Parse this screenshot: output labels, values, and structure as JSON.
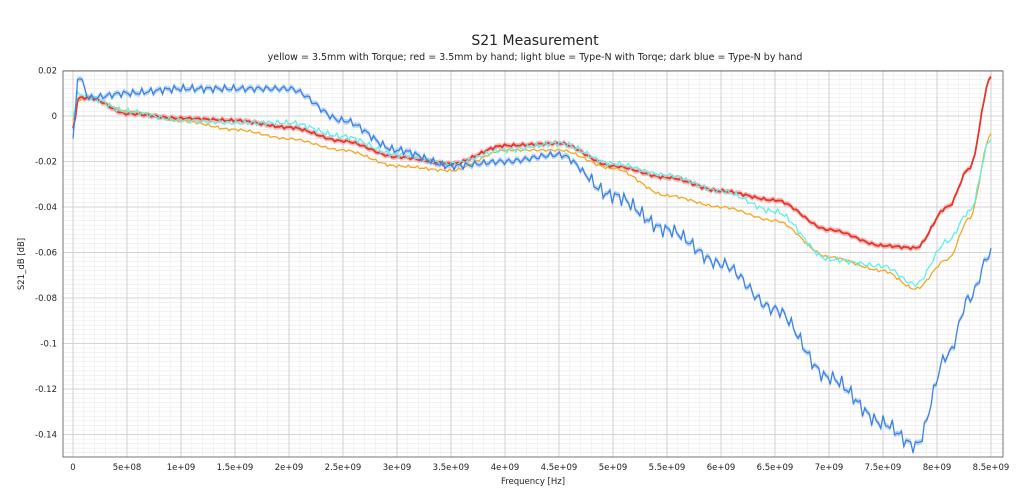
{
  "chart_data": {
    "type": "line",
    "title": "S21 Measurement",
    "subtitle": "yellow = 3.5mm with Torque; red = 3.5mm by hand; light blue = Type-N with Torqe; dark blue = Type-N by hand",
    "xlabel": "Frequency [Hz]",
    "ylabel": "S21_dB [dB]",
    "xlim": [
      0,
      8500000000.0
    ],
    "ylim": [
      -0.15,
      0.02
    ],
    "grid": true,
    "x_ticks": [
      "0",
      "5e+08",
      "1e+09",
      "1.5e+09",
      "2e+09",
      "2.5e+09",
      "3e+09",
      "3.5e+09",
      "4e+09",
      "4.5e+09",
      "5e+09",
      "5.5e+09",
      "6e+09",
      "6.5e+09",
      "7e+09",
      "7.5e+09",
      "8e+09",
      "8.5e+09"
    ],
    "y_ticks": [
      "0.02",
      "0",
      "-0.02",
      "-0.04",
      "-0.06",
      "-0.08",
      "-0.1",
      "-0.12",
      "-0.14"
    ],
    "x": [
      0,
      50000000.0,
      150000000.0,
      500000000.0,
      1000000000.0,
      1500000000.0,
      2000000000.0,
      2500000000.0,
      3000000000.0,
      3500000000.0,
      4000000000.0,
      4500000000.0,
      5000000000.0,
      5500000000.0,
      6000000000.0,
      6500000000.0,
      7000000000.0,
      7500000000.0,
      7800000000.0,
      8100000000.0,
      8300000000.0,
      8500000000.0
    ],
    "series": [
      {
        "color": "#f5a623",
        "values": [
          -0.002,
          0.007,
          0.008,
          0.002,
          -0.002,
          -0.006,
          -0.01,
          -0.015,
          -0.022,
          -0.024,
          -0.015,
          -0.015,
          -0.023,
          -0.035,
          -0.04,
          -0.046,
          -0.062,
          -0.068,
          -0.076,
          -0.063,
          -0.045,
          -0.008
        ]
      },
      {
        "color": "#e8342a",
        "band": "#f0a0a0",
        "values": [
          -0.006,
          0.008,
          0.008,
          0.001,
          -0.001,
          -0.002,
          -0.005,
          -0.011,
          -0.018,
          -0.021,
          -0.013,
          -0.012,
          -0.022,
          -0.027,
          -0.033,
          -0.037,
          -0.05,
          -0.057,
          -0.058,
          -0.04,
          -0.023,
          0.017
        ]
      },
      {
        "color": "#5ff0ea",
        "values": [
          0.0,
          0.01,
          0.008,
          0.002,
          -0.002,
          -0.003,
          -0.003,
          -0.009,
          -0.017,
          -0.021,
          -0.015,
          -0.012,
          -0.021,
          -0.026,
          -0.033,
          -0.042,
          -0.063,
          -0.066,
          -0.074,
          -0.055,
          -0.042,
          -0.01
        ]
      },
      {
        "color": "#3b82e6",
        "band": "#9ec3f0",
        "values": [
          -0.01,
          0.018,
          0.008,
          0.01,
          0.012,
          0.012,
          0.012,
          -0.002,
          -0.015,
          -0.022,
          -0.02,
          -0.017,
          -0.035,
          -0.05,
          -0.065,
          -0.085,
          -0.115,
          -0.135,
          -0.145,
          -0.105,
          -0.08,
          -0.06
        ]
      }
    ]
  }
}
